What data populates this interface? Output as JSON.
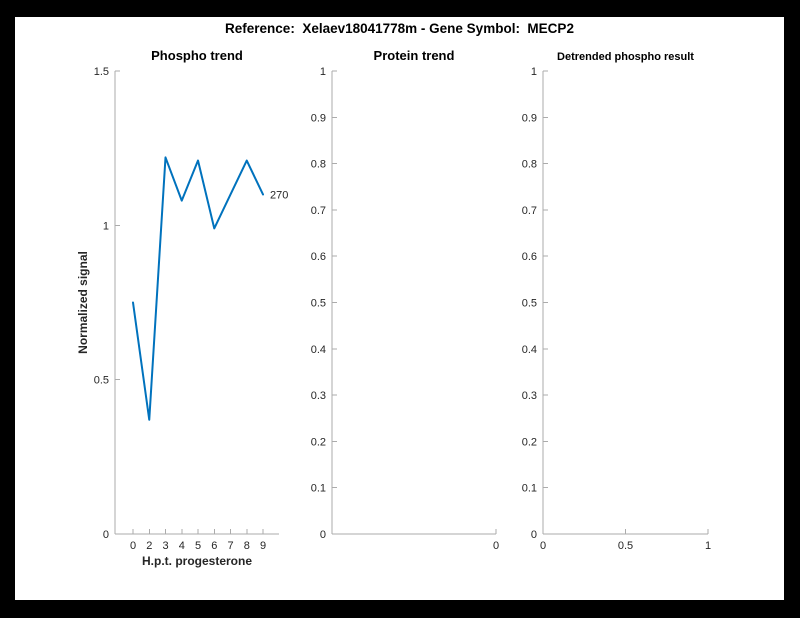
{
  "figure_title": "Reference:  Xelaev18041778m - Gene Symbol:  MECP2",
  "colors": {
    "page_background": "#000000",
    "figure_background": "#ffffff",
    "line_blue": "#0072BD",
    "axis_line": "#ababab",
    "tick_text": "#262626",
    "title_text": "#000000"
  },
  "chart_data": [
    {
      "type": "line",
      "title": "Phospho trend",
      "xlabel": "H.p.t. progesterone",
      "ylabel": "Normalized signal",
      "x_tick_labels": [
        "0",
        "2",
        "3",
        "4",
        "5",
        "6",
        "7",
        "8",
        "9"
      ],
      "y_tick_labels": [
        "0",
        "0.5",
        "1",
        "1.5"
      ],
      "ylim": [
        0,
        1.5
      ],
      "x": [
        0,
        2,
        3,
        4,
        5,
        6,
        7,
        8,
        9
      ],
      "values": [
        0.75,
        0.37,
        1.22,
        1.08,
        1.21,
        0.99,
        1.1,
        1.21,
        1.1
      ],
      "end_label": "270",
      "grid": false,
      "legend": null
    },
    {
      "type": "line",
      "title": "Protein trend",
      "xlabel": "",
      "ylabel": "",
      "x_tick_labels": [
        "0"
      ],
      "y_tick_labels": [
        "0",
        "0.1",
        "0.2",
        "0.3",
        "0.4",
        "0.5",
        "0.6",
        "0.7",
        "0.8",
        "0.9",
        "1"
      ],
      "ylim": [
        0,
        1
      ],
      "x": [],
      "values": [],
      "end_label": null,
      "grid": false,
      "legend": null
    },
    {
      "type": "line",
      "title": "Detrended phospho result",
      "xlabel": "",
      "ylabel": "",
      "x_tick_labels": [
        "0",
        "0.5",
        "1"
      ],
      "y_tick_labels": [
        "0",
        "0.1",
        "0.2",
        "0.3",
        "0.4",
        "0.5",
        "0.6",
        "0.7",
        "0.8",
        "0.9",
        "1"
      ],
      "ylim": [
        0,
        1
      ],
      "x": [],
      "values": [],
      "end_label": null,
      "grid": false,
      "legend": null
    }
  ]
}
